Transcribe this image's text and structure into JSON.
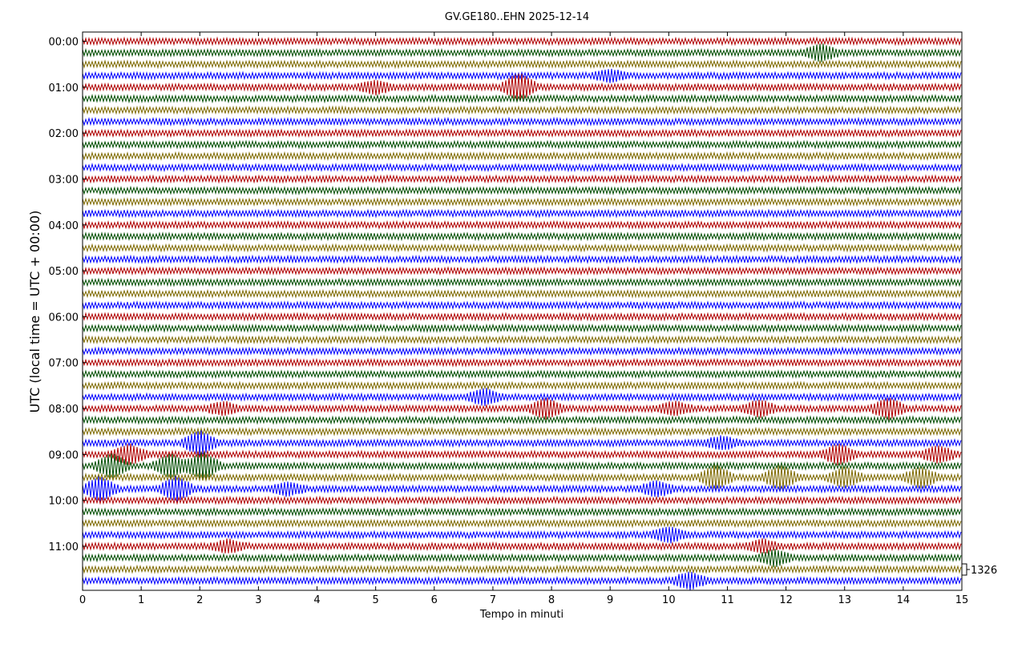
{
  "chart_data": {
    "type": "line",
    "title": "GV.GE180..EHN 2025-12-14",
    "xlabel": "Tempo in minuti",
    "ylabel": "UTC (local time = UTC + 00:00)",
    "xlim": [
      0,
      15
    ],
    "x_ticks": [
      "0",
      "1",
      "2",
      "3",
      "4",
      "5",
      "6",
      "7",
      "8",
      "9",
      "10",
      "11",
      "12",
      "13",
      "14",
      "15"
    ],
    "y_ticks": [
      "00:00",
      "01:00",
      "02:00",
      "03:00",
      "04:00",
      "05:00",
      "06:00",
      "07:00",
      "08:00",
      "09:00",
      "10:00",
      "11:00"
    ],
    "traces_per_hour": 4,
    "trace_minutes": 15,
    "trace_count": 48,
    "trace_colors": [
      "#b00000",
      "#004d00",
      "#7f6a00",
      "#0000ff"
    ],
    "scale_label": "1326",
    "grid": false,
    "events": [
      {
        "trace": 4,
        "minute": 7.45,
        "strength": 3.5
      },
      {
        "trace": 4,
        "minute": 5.0,
        "strength": 1.5
      },
      {
        "trace": 1,
        "minute": 12.6,
        "strength": 2.0
      },
      {
        "trace": 3,
        "minute": 9.0,
        "strength": 1.3
      },
      {
        "trace": 31,
        "minute": 6.85,
        "strength": 2.0
      },
      {
        "trace": 32,
        "minute": 7.9,
        "strength": 2.5
      },
      {
        "trace": 32,
        "minute": 11.55,
        "strength": 2.0
      },
      {
        "trace": 32,
        "minute": 13.75,
        "strength": 2.5
      },
      {
        "trace": 32,
        "minute": 2.4,
        "strength": 1.5
      },
      {
        "trace": 32,
        "minute": 10.1,
        "strength": 1.5
      },
      {
        "trace": 35,
        "minute": 10.9,
        "strength": 1.5
      },
      {
        "trace": 35,
        "minute": 2.0,
        "strength": 3.0
      },
      {
        "trace": 36,
        "minute": 0.8,
        "strength": 2.5
      },
      {
        "trace": 36,
        "minute": 12.9,
        "strength": 2.5
      },
      {
        "trace": 36,
        "minute": 14.6,
        "strength": 2.0
      },
      {
        "trace": 37,
        "minute": 0.5,
        "strength": 3.0
      },
      {
        "trace": 37,
        "minute": 1.5,
        "strength": 3.0
      },
      {
        "trace": 37,
        "minute": 2.05,
        "strength": 3.5
      },
      {
        "trace": 38,
        "minute": 10.8,
        "strength": 3.0
      },
      {
        "trace": 38,
        "minute": 11.9,
        "strength": 3.0
      },
      {
        "trace": 38,
        "minute": 13.0,
        "strength": 2.5
      },
      {
        "trace": 38,
        "minute": 14.3,
        "strength": 2.5
      },
      {
        "trace": 39,
        "minute": 0.3,
        "strength": 3.0
      },
      {
        "trace": 39,
        "minute": 1.6,
        "strength": 3.0
      },
      {
        "trace": 39,
        "minute": 3.5,
        "strength": 1.5
      },
      {
        "trace": 39,
        "minute": 9.8,
        "strength": 1.8
      },
      {
        "trace": 43,
        "minute": 10.0,
        "strength": 1.8
      },
      {
        "trace": 44,
        "minute": 2.5,
        "strength": 1.5
      },
      {
        "trace": 44,
        "minute": 11.6,
        "strength": 1.5
      },
      {
        "trace": 45,
        "minute": 11.8,
        "strength": 2.0
      },
      {
        "trace": 47,
        "minute": 10.35,
        "strength": 2.0
      }
    ]
  }
}
